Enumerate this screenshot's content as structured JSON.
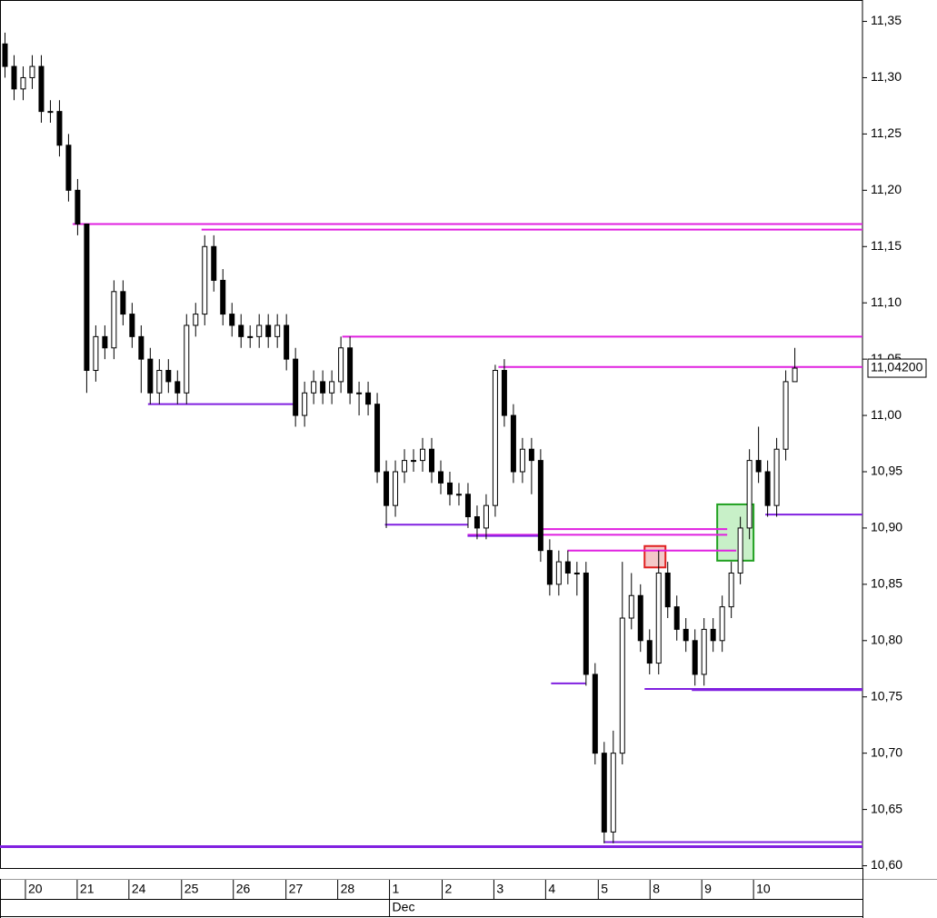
{
  "chart_data": {
    "type": "candlestick",
    "open": [
      11.33,
      11.31,
      11.29,
      11.3,
      11.31,
      11.27,
      11.27,
      11.24,
      11.2,
      11.17,
      11.04,
      11.07,
      11.06,
      11.11,
      11.09,
      11.07,
      11.05,
      11.02,
      11.04,
      11.03,
      11.02,
      11.08,
      11.09,
      11.15,
      11.12,
      11.09,
      11.08,
      11.07,
      11.07,
      11.08,
      11.07,
      11.08,
      11.05,
      11.0,
      11.02,
      11.03,
      11.02,
      11.03,
      11.06,
      11.02,
      11.02,
      11.01,
      10.95,
      10.92,
      10.95,
      10.96,
      10.96,
      10.97,
      10.95,
      10.94,
      10.93,
      10.93,
      10.91,
      10.9,
      10.92,
      11.04,
      11.0,
      10.95,
      10.97,
      10.96,
      10.88,
      10.85,
      10.87,
      10.86,
      10.86,
      10.77,
      10.7,
      10.63,
      10.7,
      10.82,
      10.84,
      10.8,
      10.78,
      10.86,
      10.83,
      10.81,
      10.8,
      10.77,
      10.81,
      10.8,
      10.83,
      10.86,
      10.9,
      10.96,
      10.95,
      10.92,
      10.97,
      11.03
    ],
    "high": [
      11.34,
      11.32,
      11.31,
      11.32,
      11.32,
      11.28,
      11.28,
      11.25,
      11.21,
      11.17,
      11.08,
      11.08,
      11.12,
      11.12,
      11.1,
      11.08,
      11.06,
      11.05,
      11.05,
      11.04,
      11.09,
      11.1,
      11.16,
      11.16,
      11.13,
      11.1,
      11.09,
      11.08,
      11.09,
      11.09,
      11.09,
      11.09,
      11.06,
      11.03,
      11.04,
      11.04,
      11.04,
      11.07,
      11.07,
      11.03,
      11.03,
      11.02,
      10.96,
      10.96,
      10.97,
      10.97,
      10.98,
      10.98,
      10.96,
      10.95,
      10.94,
      10.94,
      10.92,
      10.93,
      11.045,
      11.05,
      11.01,
      10.98,
      10.98,
      10.97,
      10.89,
      10.88,
      10.88,
      10.87,
      10.87,
      10.78,
      10.71,
      10.72,
      10.87,
      10.86,
      10.85,
      10.81,
      10.88,
      10.87,
      10.84,
      10.82,
      10.81,
      10.82,
      10.82,
      10.84,
      10.87,
      10.91,
      10.97,
      10.99,
      10.96,
      10.98,
      11.04,
      11.06
    ],
    "low": [
      11.3,
      11.28,
      11.28,
      11.29,
      11.26,
      11.26,
      11.23,
      11.19,
      11.16,
      11.02,
      11.03,
      11.05,
      11.05,
      11.08,
      11.06,
      11.02,
      11.01,
      11.01,
      11.02,
      11.01,
      11.01,
      11.07,
      11.08,
      11.11,
      11.08,
      11.07,
      11.06,
      11.06,
      11.06,
      11.06,
      11.06,
      11.04,
      10.99,
      10.99,
      11.01,
      11.01,
      11.01,
      11.02,
      11.01,
      11.0,
      11.0,
      10.94,
      10.9,
      10.91,
      10.94,
      10.95,
      10.95,
      10.94,
      10.93,
      10.92,
      10.92,
      10.9,
      10.89,
      10.89,
      10.91,
      10.99,
      10.94,
      10.94,
      10.93,
      10.87,
      10.84,
      10.84,
      10.85,
      10.84,
      10.76,
      10.69,
      10.62,
      10.62,
      10.69,
      10.81,
      10.79,
      10.77,
      10.77,
      10.82,
      10.8,
      10.79,
      10.76,
      10.76,
      10.79,
      10.79,
      10.82,
      10.85,
      10.89,
      10.94,
      10.91,
      10.91,
      10.96,
      11.03
    ],
    "close": [
      11.31,
      11.29,
      11.3,
      11.31,
      11.27,
      11.27,
      11.24,
      11.2,
      11.17,
      11.04,
      11.07,
      11.06,
      11.11,
      11.09,
      11.07,
      11.05,
      11.02,
      11.04,
      11.03,
      11.02,
      11.08,
      11.09,
      11.15,
      11.12,
      11.09,
      11.08,
      11.07,
      11.07,
      11.08,
      11.07,
      11.08,
      11.05,
      11.0,
      11.02,
      11.03,
      11.02,
      11.03,
      11.06,
      11.02,
      11.02,
      11.01,
      10.95,
      10.92,
      10.95,
      10.96,
      10.96,
      10.97,
      10.95,
      10.94,
      10.93,
      10.93,
      10.91,
      10.9,
      10.92,
      11.04,
      11.0,
      10.95,
      10.97,
      10.96,
      10.88,
      10.85,
      10.87,
      10.86,
      10.86,
      10.77,
      10.7,
      10.63,
      10.7,
      10.82,
      10.84,
      10.8,
      10.78,
      10.86,
      10.83,
      10.81,
      10.8,
      10.77,
      10.81,
      10.8,
      10.83,
      10.86,
      10.9,
      10.96,
      10.95,
      10.92,
      10.97,
      11.03,
      11.042
    ],
    "up_color": "#ffffff",
    "down_color": "#000000",
    "xlim": [
      -0.5,
      94.5
    ],
    "ylim": [
      10.598,
      11.369
    ],
    "yticks": [
      {
        "value": 10.6,
        "label": "10,60"
      },
      {
        "value": 10.65,
        "label": "10,65"
      },
      {
        "value": 10.7,
        "label": "10,70"
      },
      {
        "value": 10.75,
        "label": "10,75"
      },
      {
        "value": 10.8,
        "label": "10,80"
      },
      {
        "value": 10.85,
        "label": "10,85"
      },
      {
        "value": 10.9,
        "label": "10,90"
      },
      {
        "value": 10.95,
        "label": "10,95"
      },
      {
        "value": 11.0,
        "label": "11,00"
      },
      {
        "value": 11.05,
        "label": "11,05"
      },
      {
        "value": 11.1,
        "label": "11,10"
      },
      {
        "value": 11.15,
        "label": "11,15"
      },
      {
        "value": 11.2,
        "label": "11,20"
      },
      {
        "value": 11.25,
        "label": "11,25"
      },
      {
        "value": 11.3,
        "label": "11,30"
      },
      {
        "value": 11.35,
        "label": "11,35"
      }
    ],
    "xticks": [
      {
        "value": 2.3,
        "label": "20"
      },
      {
        "value": 8.0,
        "label": "21"
      },
      {
        "value": 13.7,
        "label": "24"
      },
      {
        "value": 19.5,
        "label": "25"
      },
      {
        "value": 25.2,
        "label": "26"
      },
      {
        "value": 31.0,
        "label": "27"
      },
      {
        "value": 36.7,
        "label": "28"
      },
      {
        "value": 42.4,
        "label": "1"
      },
      {
        "value": 48.2,
        "label": "2"
      },
      {
        "value": 53.9,
        "label": "3"
      },
      {
        "value": 59.6,
        "label": "4"
      },
      {
        "value": 65.4,
        "label": "5"
      },
      {
        "value": 71.1,
        "label": "8"
      },
      {
        "value": 76.8,
        "label": "9"
      },
      {
        "value": 82.5,
        "label": "10"
      }
    ],
    "month_ticks": [
      {
        "value": 42.4,
        "label": "Dec"
      }
    ],
    "last_price": {
      "value": 11.042,
      "label": "11,04200"
    },
    "levels": [
      {
        "value": 11.17,
        "x_start": 7.5,
        "x_end": 94.5,
        "color": "#e020e0"
      },
      {
        "value": 11.165,
        "x_start": 21.7,
        "x_end": 94.5,
        "color": "#e020e0"
      },
      {
        "value": 11.07,
        "x_start": 37.2,
        "x_end": 94.5,
        "color": "#e020e0"
      },
      {
        "value": 11.043,
        "x_start": 54.4,
        "x_end": 94.5,
        "color": "#e020e0"
      },
      {
        "value": 10.899,
        "x_start": 59.1,
        "x_end": 79.6,
        "color": "#e020e0"
      },
      {
        "value": 10.894,
        "x_start": 51,
        "x_end": 79.6,
        "color": "#e020e0"
      },
      {
        "value": 10.88,
        "x_start": 62,
        "x_end": 80.6,
        "color": "#e020e0"
      },
      {
        "value": 11.01,
        "x_start": 15.8,
        "x_end": 32,
        "color": "#8020e0"
      },
      {
        "value": 10.903,
        "x_start": 41.9,
        "x_end": 51,
        "color": "#8020e0"
      },
      {
        "value": 10.893,
        "x_start": 51,
        "x_end": 59.1,
        "color": "#8020e0"
      },
      {
        "value": 10.762,
        "x_start": 60.2,
        "x_end": 64,
        "color": "#8020e0"
      },
      {
        "value": 10.757,
        "x_start": 70.5,
        "x_end": 94.5,
        "color": "#8020e0"
      },
      {
        "value": 10.756,
        "x_start": 75.7,
        "x_end": 94.5,
        "color": "#8020e0"
      },
      {
        "value": 10.912,
        "x_start": 83.8,
        "x_end": 94.5,
        "color": "#8020e0"
      },
      {
        "value": 10.621,
        "x_start": 66,
        "x_end": 94.5,
        "color": "#8020e0"
      },
      {
        "value": 10.617,
        "x_start": -0.5,
        "x_end": 94.5,
        "color": "#8020e0"
      }
    ],
    "boxes": [
      {
        "x_start": 70.5,
        "x_end": 72.8,
        "top": 10.884,
        "bottom": 10.865,
        "color": "#e02020",
        "fill": "#f4c8c8"
      },
      {
        "x_start": 78.5,
        "x_end": 82.5,
        "top": 10.921,
        "bottom": 10.871,
        "color": "#20a020",
        "fill": "#c8f0c8"
      }
    ]
  }
}
